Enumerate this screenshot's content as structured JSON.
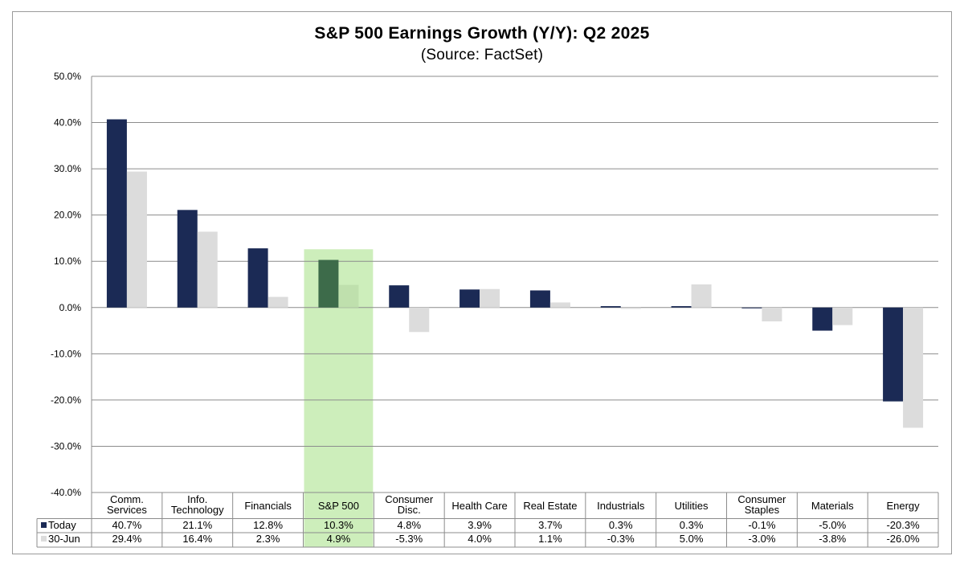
{
  "title": "S&P 500 Earnings Growth (Y/Y): Q2 2025",
  "subtitle": "(Source: FactSet)",
  "colors": {
    "today": "#1b2a55",
    "june": "#dcdcdc",
    "highlight_band": "#cdeebb",
    "highlight_today": "#3d6b4a",
    "highlight_june": "#bfe0ad",
    "grid": "#8c8c8c"
  },
  "chart_data": {
    "type": "bar",
    "title": "S&P 500 Earnings Growth (Y/Y): Q2 2025",
    "subtitle": "(Source: FactSet)",
    "categories": [
      [
        "Comm.",
        "Services"
      ],
      [
        "Info.",
        "Technology"
      ],
      [
        "Financials"
      ],
      [
        "S&P 500"
      ],
      [
        "Consumer",
        "Disc."
      ],
      [
        "Health Care"
      ],
      [
        "Real Estate"
      ],
      [
        "Industrials"
      ],
      [
        "Utilities"
      ],
      [
        "Consumer",
        "Staples"
      ],
      [
        "Materials"
      ],
      [
        "Energy"
      ]
    ],
    "highlight_category": "S&P 500",
    "series": [
      {
        "name": "Today",
        "values": [
          40.7,
          21.1,
          12.8,
          10.3,
          4.8,
          3.9,
          3.7,
          0.3,
          0.3,
          -0.1,
          -5.0,
          -20.3
        ],
        "labels": [
          "40.7%",
          "21.1%",
          "12.8%",
          "10.3%",
          "4.8%",
          "3.9%",
          "3.7%",
          "0.3%",
          "0.3%",
          "-0.1%",
          "-5.0%",
          "-20.3%"
        ]
      },
      {
        "name": "30-Jun",
        "values": [
          29.4,
          16.4,
          2.3,
          4.9,
          -5.3,
          4.0,
          1.1,
          -0.3,
          5.0,
          -3.0,
          -3.8,
          -26.0
        ],
        "labels": [
          "29.4%",
          "16.4%",
          "2.3%",
          "4.9%",
          "-5.3%",
          "4.0%",
          "1.1%",
          "-0.3%",
          "5.0%",
          "-3.0%",
          "-3.8%",
          "-26.0%"
        ]
      }
    ],
    "ylim": [
      -40,
      50
    ],
    "yticks": [
      "50.0%",
      "40.0%",
      "30.0%",
      "20.0%",
      "10.0%",
      "0.0%",
      "-10.0%",
      "-20.0%",
      "-30.0%",
      "-40.0%"
    ],
    "ytick_values": [
      50,
      40,
      30,
      20,
      10,
      0,
      -10,
      -20,
      -30,
      -40
    ],
    "grid": true,
    "legend": "data-table"
  }
}
